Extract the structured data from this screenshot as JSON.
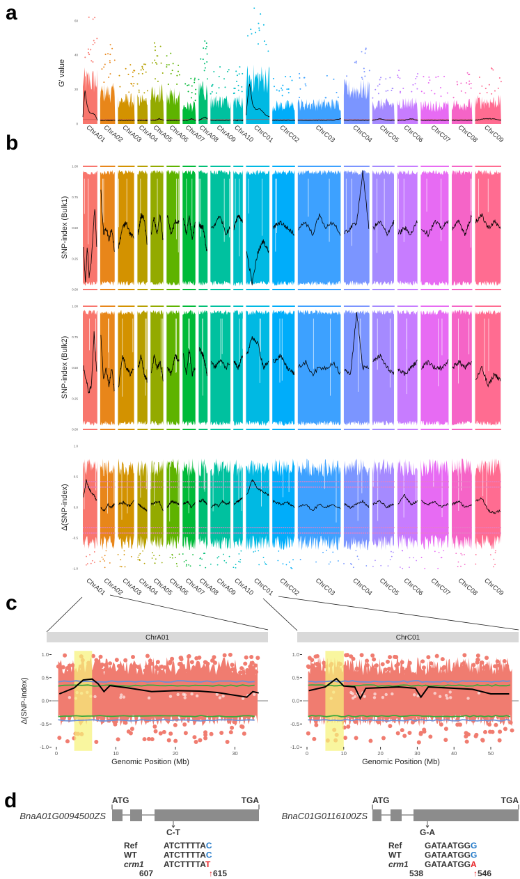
{
  "labels": {
    "a": "a",
    "b": "b",
    "c": "c",
    "d": "d"
  },
  "chart_data": [
    {
      "id": "panel_a",
      "type": "scatter",
      "ylabel": "G' value",
      "yticks": [
        "0",
        "20",
        "40",
        "60"
      ],
      "ylim": [
        0,
        70
      ],
      "threshold": 2.5,
      "chromosomes": [
        "ChrA01",
        "ChrA02",
        "ChrA03",
        "ChrA04",
        "ChrA05",
        "ChrA06",
        "ChrA07",
        "ChrA08",
        "ChrA09",
        "ChrA10",
        "ChrC01",
        "ChrC02",
        "ChrC03",
        "ChrC04",
        "ChrC05",
        "ChrC06",
        "ChrC07",
        "ChrC08",
        "ChrC09"
      ],
      "lengths_mb": [
        34,
        35,
        39,
        24,
        31,
        31,
        31,
        21,
        47,
        23,
        55,
        53,
        101,
        60,
        52,
        48,
        66,
        48,
        61
      ],
      "colors": [
        "#F8766D",
        "#E8861A",
        "#D39200",
        "#B79F00",
        "#93AA00",
        "#5EB300",
        "#00BA38",
        "#00BF74",
        "#00C19F",
        "#00BFC4",
        "#00B9E3",
        "#00ADFA",
        "#3DA1FF",
        "#7B95FF",
        "#A58AFF",
        "#C77CFF",
        "#E76BF3",
        "#F564C7",
        "#FF6C91"
      ],
      "max_values": [
        66,
        48,
        36,
        35,
        48,
        43,
        27,
        51,
        35,
        35,
        70,
        28,
        30,
        52,
        30,
        32,
        28,
        30,
        34
      ],
      "smoothed": [
        [
          4,
          20,
          11,
          7,
          6,
          6,
          5,
          2
        ],
        [
          2,
          2,
          2,
          2
        ],
        [
          2,
          2,
          2,
          2
        ],
        [
          2,
          2,
          2
        ],
        [
          2,
          2,
          3,
          2
        ],
        [
          2,
          2,
          2,
          2
        ],
        [
          2,
          2,
          3,
          2
        ],
        [
          2,
          3,
          4,
          3
        ],
        [
          2,
          2,
          2,
          2
        ],
        [
          2,
          2,
          2
        ],
        [
          5,
          24,
          11,
          8,
          9,
          7,
          5,
          4
        ],
        [
          2,
          2,
          2,
          2
        ],
        [
          2,
          2,
          2,
          2,
          2,
          3
        ],
        [
          2,
          2,
          2,
          2
        ],
        [
          2,
          3,
          2,
          2
        ],
        [
          2,
          2,
          3,
          2
        ],
        [
          2,
          2,
          2,
          2
        ],
        [
          2,
          2,
          2,
          2
        ],
        [
          2,
          3,
          3,
          2
        ]
      ]
    },
    {
      "id": "panel_b_bulk1",
      "type": "scatter",
      "ylabel": "SNP-index (Bulk1)",
      "yticks": [
        "0.00",
        "0.25",
        "0.50",
        "0.75",
        "1.00"
      ],
      "ylim": [
        0,
        1
      ],
      "smoothed": [
        [
          0.33,
          0.05,
          0.35,
          0.1,
          0.2,
          0.45,
          0.68,
          0.35
        ],
        [
          0.8,
          0.45,
          0.5,
          0.4,
          0.5,
          0.3
        ],
        [
          0.35,
          0.5,
          0.55,
          0.45,
          0.42
        ],
        [
          0.45,
          0.6,
          0.58,
          0.38
        ],
        [
          0.45,
          0.58,
          0.45,
          0.6,
          0.4
        ],
        [
          0.6,
          0.45,
          0.55,
          0.55
        ],
        [
          0.58,
          0.45,
          0.6,
          0.4,
          0.55
        ],
        [
          0.52,
          0.5,
          0.3
        ],
        [
          0.5,
          0.52,
          0.6,
          0.55,
          0.45,
          0.5
        ],
        [
          0.5,
          0.6,
          0.55
        ],
        [
          0.3,
          0.05,
          0.3,
          0.4,
          0.3
        ],
        [
          0.5,
          0.55,
          0.5,
          0.45
        ],
        [
          0.5,
          0.55,
          0.45,
          0.6,
          0.5,
          0.55,
          0.45
        ],
        [
          0.45,
          0.5,
          0.55,
          0.95,
          0.5
        ],
        [
          0.5,
          0.55,
          0.45,
          0.55
        ],
        [
          0.45,
          0.5,
          0.45,
          0.55
        ],
        [
          0.5,
          0.45,
          0.55,
          0.5,
          0.55
        ],
        [
          0.5,
          0.55,
          0.45,
          0.6
        ],
        [
          0.55,
          0.6,
          0.5,
          0.55,
          0.5
        ]
      ]
    },
    {
      "id": "panel_b_bulk2",
      "type": "scatter",
      "ylabel": "SNP-index (Bulk2)",
      "yticks": [
        "0.00",
        "0.25",
        "0.50",
        "0.75",
        "1.00"
      ],
      "ylim": [
        0,
        1
      ],
      "smoothed": [
        [
          0.5,
          0.4,
          0.3,
          0.35,
          0.8,
          0.45
        ],
        [
          0.75,
          0.4,
          0.5,
          0.35,
          0.5,
          0.3
        ],
        [
          0.35,
          0.6,
          0.5,
          0.45,
          0.5
        ],
        [
          0.5,
          0.6,
          0.45,
          0.4
        ],
        [
          0.45,
          0.6,
          0.5,
          0.55,
          0.4
        ],
        [
          0.5,
          0.45,
          0.6,
          0.55
        ],
        [
          0.6,
          0.45,
          0.65,
          0.45,
          0.5
        ],
        [
          0.65,
          0.6,
          0.45
        ],
        [
          0.55,
          0.5,
          0.55,
          0.55,
          0.5,
          0.55
        ],
        [
          0.55,
          0.5,
          0.6
        ],
        [
          0.6,
          0.75,
          0.7,
          0.5,
          0.55
        ],
        [
          0.55,
          0.6,
          0.5,
          0.45
        ],
        [
          0.5,
          0.55,
          0.45,
          0.5,
          0.5,
          0.55,
          0.45
        ],
        [
          0.5,
          0.45,
          0.95,
          0.5,
          0.5
        ],
        [
          0.55,
          0.6,
          0.5,
          0.45
        ],
        [
          0.5,
          0.45,
          0.5,
          0.55
        ],
        [
          0.5,
          0.55,
          0.5,
          0.5,
          0.55
        ],
        [
          0.5,
          0.55,
          0.5,
          0.55
        ],
        [
          0.4,
          0.5,
          0.35,
          0.45,
          0.4
        ]
      ]
    },
    {
      "id": "panel_b_delta",
      "type": "scatter",
      "ylabel": "Δ(SNP-index)",
      "yticks": [
        "-1.0",
        "-0.5",
        "0.0",
        "0.5",
        "1.0"
      ],
      "ylim": [
        -1,
        1
      ],
      "thresholds": [
        -0.42,
        -0.33,
        0.33,
        0.42
      ],
      "smoothed": [
        [
          0.15,
          0.45,
          0.3,
          0.25,
          0.2,
          0.1
        ],
        [
          0.0,
          -0.05,
          0.05,
          0.0,
          0.05
        ],
        [
          0.05,
          0.08,
          0.02,
          0.1
        ],
        [
          0.05,
          0.0,
          -0.05
        ],
        [
          0.05,
          0.08,
          0.1,
          -0.05
        ],
        [
          0.0,
          0.1,
          0.08,
          0.05
        ],
        [
          0.05,
          0.1,
          0.0,
          0.08
        ],
        [
          0.1,
          0.12,
          0.05
        ],
        [
          0.0,
          0.05,
          0.02,
          0.1,
          0.05,
          0.08
        ],
        [
          0.05,
          0.1,
          0.15
        ],
        [
          0.2,
          0.45,
          0.3,
          0.25,
          0.2
        ],
        [
          0.1,
          0.05,
          0.08,
          0.0
        ],
        [
          0.0,
          0.05,
          -0.05,
          0.05,
          0.0,
          0.05,
          -0.02
        ],
        [
          0.05,
          0.0,
          0.05,
          0.1,
          0.0
        ],
        [
          0.05,
          0.1,
          0.0,
          0.05
        ],
        [
          0.05,
          0.2,
          0.05,
          0.1
        ],
        [
          0.1,
          0.05,
          0.1,
          0.0,
          0.05
        ],
        [
          0.05,
          0.1,
          0.0,
          0.05
        ],
        [
          0.1,
          0.15,
          -0.05,
          -0.1,
          -0.05
        ]
      ]
    },
    {
      "id": "panel_c",
      "type": "scatter",
      "ylabel": "Δ(SNP-index)",
      "xlabel": "Genomic Position (Mb)",
      "yticks": [
        "-1.0",
        "-0.5",
        "0.0",
        "0.5",
        "1.0"
      ],
      "ylim": [
        -1,
        1
      ],
      "point_color": "#F07C70",
      "ci95_color": "#3DAA3D",
      "ci99_color": "#6A8FD8",
      "highlight_color": "#F7F27A",
      "facets": [
        {
          "strip": "ChrA01",
          "xticks": [
            "0",
            "10",
            "20",
            "30"
          ],
          "xlim": [
            0,
            35
          ],
          "highlight_mb": [
            3,
            6
          ],
          "ci95": 0.33,
          "ci99": 0.42,
          "line": [
            [
              0.5,
              0.15
            ],
            [
              3,
              0.28
            ],
            [
              4.5,
              0.45
            ],
            [
              6,
              0.47
            ],
            [
              7,
              0.37
            ],
            [
              8,
              0.2
            ],
            [
              9,
              0.33
            ],
            [
              12,
              0.28
            ],
            [
              16,
              0.2
            ],
            [
              20,
              0.22
            ],
            [
              24,
              0.21
            ],
            [
              27,
              0.18
            ],
            [
              32,
              0.08
            ],
            [
              33,
              0.2
            ],
            [
              34,
              0.17
            ]
          ]
        },
        {
          "strip": "ChrC01",
          "xticks": [
            "0",
            "10",
            "20",
            "30",
            "40",
            "50"
          ],
          "xlim": [
            0,
            57
          ],
          "highlight_mb": [
            5,
            10
          ],
          "ci95": 0.33,
          "ci99": 0.42,
          "line": [
            [
              0.5,
              0.22
            ],
            [
              5,
              0.3
            ],
            [
              8,
              0.48
            ],
            [
              10,
              0.32
            ],
            [
              13,
              0.3
            ],
            [
              14.5,
              0.05
            ],
            [
              16,
              0.27
            ],
            [
              25,
              0.3
            ],
            [
              29.5,
              0.27
            ],
            [
              31,
              0.08
            ],
            [
              33,
              0.3
            ],
            [
              45,
              0.25
            ],
            [
              50,
              0.15
            ],
            [
              55,
              0.15
            ]
          ]
        }
      ]
    }
  ],
  "panel_d": {
    "genes": [
      {
        "name": "BnaA01G0094500ZS",
        "start": "ATG",
        "stop": "TGA",
        "mutation": "C-T",
        "rows": [
          {
            "label": "Ref",
            "seq": "ATCTTTTA",
            "base": "C"
          },
          {
            "label": "WT",
            "seq": "ATCTTTTA",
            "base": "C"
          },
          {
            "label": "crm1",
            "seq": "ATCTTTTA",
            "base": "T"
          }
        ],
        "pos_start": "607",
        "pos_end": "615"
      },
      {
        "name": "BnaC01G0116100ZS",
        "start": "ATG",
        "stop": "TGA",
        "mutation": "G-A",
        "rows": [
          {
            "label": "Ref",
            "seq": "GATAATGG",
            "base": "G"
          },
          {
            "label": "WT",
            "seq": "GATAATGG",
            "base": "G"
          },
          {
            "label": "crm1",
            "seq": "GATAATGG",
            "base": "A"
          }
        ],
        "pos_start": "538",
        "pos_end": "546"
      }
    ],
    "ref_color": "#1F77C8",
    "mut_color": "#E8262A",
    "gene_color": "#8C8C8C",
    "up_arrow": "↑"
  }
}
